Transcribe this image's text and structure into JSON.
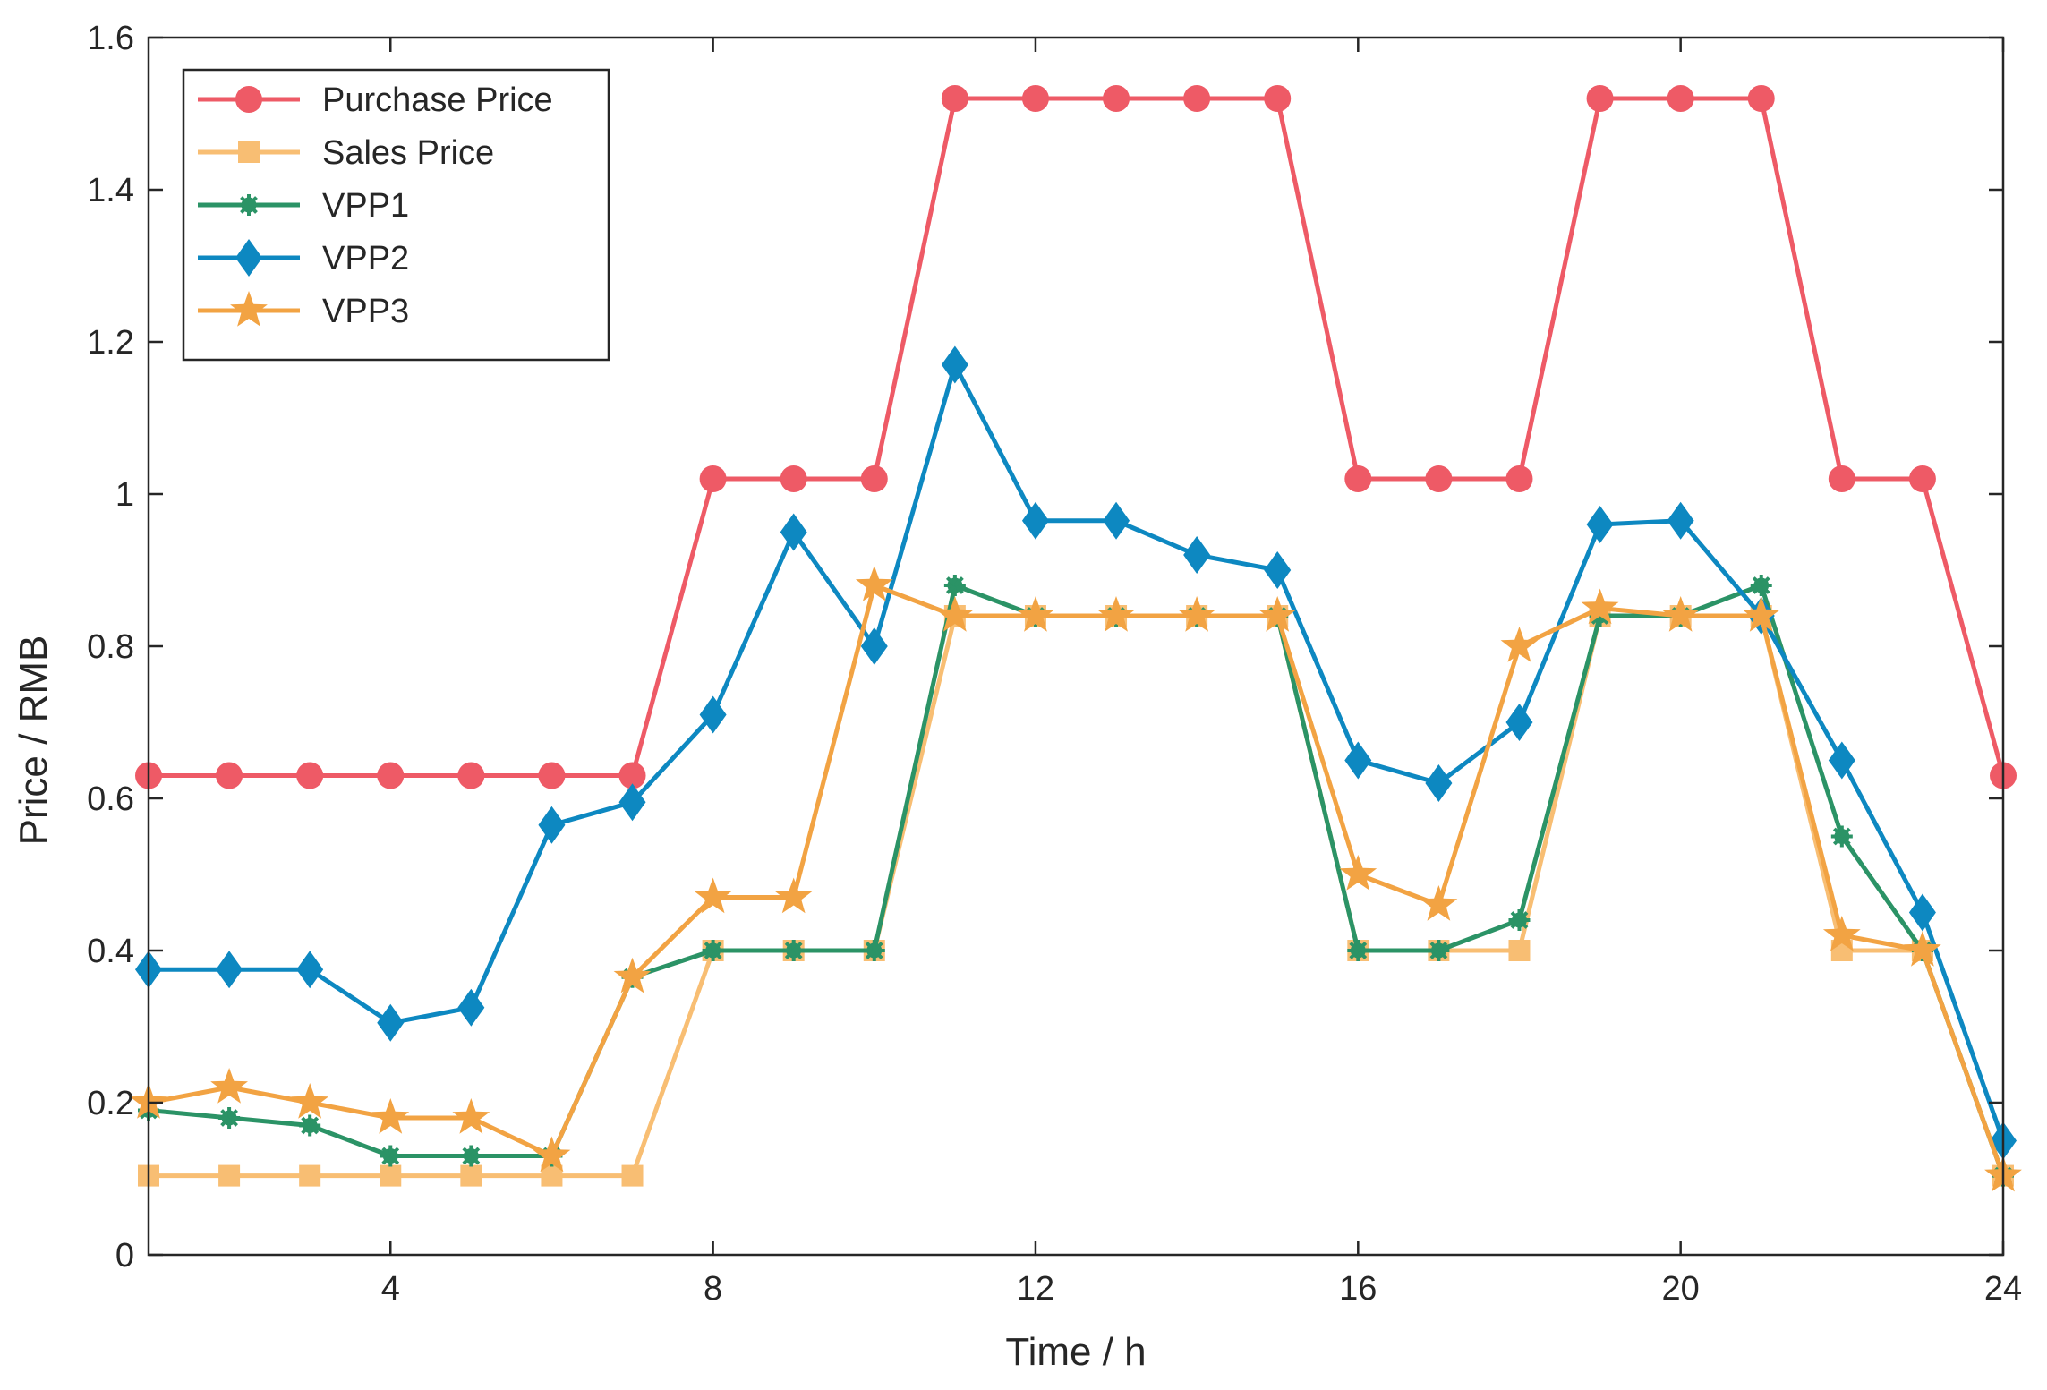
{
  "chart_data": {
    "type": "line",
    "title": "",
    "xlabel": "Time / h",
    "ylabel": "Price / RMB",
    "xlim": [
      1,
      24
    ],
    "ylim": [
      0,
      1.6
    ],
    "xticks": [
      4,
      8,
      12,
      16,
      20,
      24
    ],
    "xtick_labels": [
      "4",
      "8",
      "12",
      "16",
      "20",
      "24"
    ],
    "yticks": [
      0,
      0.2,
      0.4,
      0.6,
      0.8,
      1,
      1.2,
      1.4,
      1.6
    ],
    "ytick_labels": [
      "0",
      "0.2",
      "0.4",
      "0.6",
      "0.8",
      "1",
      "1.2",
      "1.4",
      "1.6"
    ],
    "grid": false,
    "legend_position": "top-left",
    "x": [
      1,
      2,
      3,
      4,
      5,
      6,
      7,
      8,
      9,
      10,
      11,
      12,
      13,
      14,
      15,
      16,
      17,
      18,
      19,
      20,
      21,
      22,
      23,
      24
    ],
    "series": [
      {
        "name": "Purchase Price",
        "color": "#EE5A66",
        "marker": "circle",
        "values": [
          0.63,
          0.63,
          0.63,
          0.63,
          0.63,
          0.63,
          0.63,
          1.02,
          1.02,
          1.02,
          1.52,
          1.52,
          1.52,
          1.52,
          1.52,
          1.02,
          1.02,
          1.02,
          1.52,
          1.52,
          1.52,
          1.02,
          1.02,
          0.63
        ]
      },
      {
        "name": "Sales Price",
        "color": "#F8BE73",
        "marker": "square",
        "values": [
          0.104,
          0.104,
          0.104,
          0.104,
          0.104,
          0.104,
          0.104,
          0.4,
          0.4,
          0.4,
          0.84,
          0.84,
          0.84,
          0.84,
          0.84,
          0.4,
          0.4,
          0.4,
          0.84,
          0.84,
          0.84,
          0.4,
          0.4,
          0.104
        ]
      },
      {
        "name": "VPP1",
        "color": "#2B9366",
        "marker": "asterisk",
        "values": [
          0.19,
          0.18,
          0.17,
          0.13,
          0.13,
          0.13,
          0.365,
          0.4,
          0.4,
          0.4,
          0.88,
          0.84,
          0.84,
          0.84,
          0.84,
          0.4,
          0.4,
          0.44,
          0.84,
          0.84,
          0.88,
          0.55,
          0.4,
          0.104
        ]
      },
      {
        "name": "VPP2",
        "color": "#0D88C1",
        "marker": "diamond",
        "values": [
          0.375,
          0.375,
          0.375,
          0.305,
          0.325,
          0.565,
          0.595,
          0.71,
          0.95,
          0.8,
          1.17,
          0.965,
          0.965,
          0.92,
          0.9,
          0.65,
          0.62,
          0.7,
          0.96,
          0.965,
          0.84,
          0.65,
          0.45,
          0.15
        ]
      },
      {
        "name": "VPP3",
        "color": "#F2A343",
        "marker": "star",
        "values": [
          0.2,
          0.22,
          0.2,
          0.18,
          0.18,
          0.13,
          0.365,
          0.47,
          0.47,
          0.88,
          0.84,
          0.84,
          0.84,
          0.84,
          0.84,
          0.5,
          0.46,
          0.8,
          0.85,
          0.84,
          0.84,
          0.42,
          0.4,
          0.104
        ]
      }
    ]
  }
}
